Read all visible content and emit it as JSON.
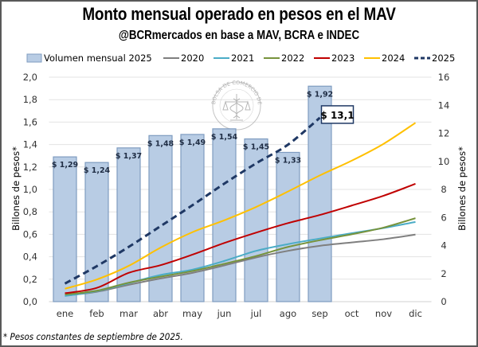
{
  "chart_data": {
    "type": "bar+line",
    "title": "Monto mensual operado en pesos en el MAV",
    "subtitle": "@BCRmercados en base a MAV, BCRA e INDEC",
    "footnote": "* Pesos constantes de septiembre de 2025.",
    "categories": [
      "ene",
      "feb",
      "mar",
      "abr",
      "may",
      "jun",
      "jul",
      "ago",
      "sep",
      "oct",
      "nov",
      "dic"
    ],
    "ylabel_left": "Billones de pesos*",
    "ylabel_right": "Billones de pesos*",
    "ylim_left": [
      0,
      2.0
    ],
    "ylim_right": [
      0,
      16
    ],
    "yticks_left": [
      "0,0",
      "0,2",
      "0,4",
      "0,6",
      "0,8",
      "1,0",
      "1,2",
      "1,4",
      "1,6",
      "1,8",
      "2,0"
    ],
    "yticks_right": [
      "0",
      "2",
      "4",
      "6",
      "8",
      "10",
      "12",
      "14",
      "16"
    ],
    "grid": true,
    "legend_position": "top",
    "bars": {
      "name": "Volumen mensual 2025",
      "axis": "left",
      "color": "#b8cce4",
      "edge_color": "#7f9cc0",
      "values": [
        1.29,
        1.24,
        1.37,
        1.48,
        1.49,
        1.54,
        1.45,
        1.33,
        1.92
      ],
      "labels": [
        "$ 1,29",
        "$ 1,24",
        "$ 1,37",
        "$ 1,48",
        "$ 1,49",
        "$ 1,54",
        "$ 1,45",
        "$ 1,33",
        "$ 1,92"
      ]
    },
    "series": [
      {
        "name": "2020",
        "axis": "right",
        "color": "#7f7f7f",
        "style": "solid",
        "values": [
          0.42,
          0.7,
          1.2,
          1.65,
          2.05,
          2.58,
          3.15,
          3.62,
          3.98,
          4.22,
          4.45,
          4.78
        ]
      },
      {
        "name": "2021",
        "axis": "right",
        "color": "#4bacc6",
        "style": "solid",
        "values": [
          0.4,
          0.75,
          1.32,
          1.9,
          2.28,
          2.9,
          3.62,
          4.1,
          4.5,
          4.88,
          5.25,
          5.68
        ]
      },
      {
        "name": "2022",
        "axis": "right",
        "color": "#77933c",
        "style": "solid",
        "values": [
          0.5,
          0.78,
          1.35,
          1.78,
          2.18,
          2.7,
          3.25,
          3.9,
          4.38,
          4.8,
          5.28,
          5.95
        ]
      },
      {
        "name": "2023",
        "axis": "right",
        "color": "#c00000",
        "style": "solid",
        "values": [
          0.6,
          0.98,
          2.05,
          2.6,
          3.35,
          4.18,
          4.92,
          5.6,
          6.18,
          6.85,
          7.55,
          8.4
        ]
      },
      {
        "name": "2024",
        "axis": "right",
        "color": "#ffc000",
        "style": "solid",
        "values": [
          0.92,
          1.58,
          2.55,
          3.85,
          4.95,
          5.8,
          6.75,
          7.85,
          9.0,
          10.05,
          11.25,
          12.75
        ]
      },
      {
        "name": "2025",
        "axis": "right",
        "color": "#1f3864",
        "style": "dashed",
        "values": [
          1.29,
          2.53,
          3.9,
          5.38,
          6.87,
          8.41,
          9.86,
          11.19,
          13.11
        ]
      }
    ],
    "annotations": [
      {
        "text": "$ 13,1",
        "series": "2025",
        "category": "sep"
      }
    ]
  },
  "watermark": {
    "text": "BOLSA DE COMERCIO DE ROSARIO"
  }
}
